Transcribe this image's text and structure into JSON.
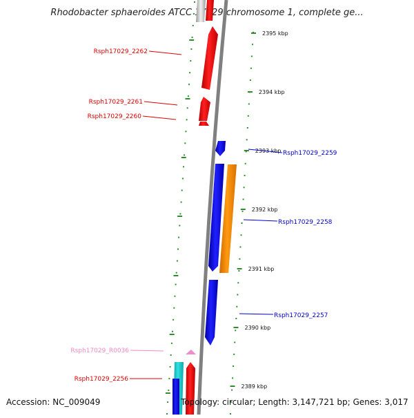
{
  "title": "Rhodobacter sphaeroides ATCC 17029 chromosome 1, complete ge...",
  "accession": "Accession: NC_009049",
  "summary": "Topology: circular; Length: 3,147,721 bp; Genes: 3,017",
  "scale_labels": [
    "2395 kbp",
    "2394 kbp",
    "2393 kbp",
    "2392 kbp",
    "2391 kbp",
    "2390 kbp",
    "2389 kbp"
  ],
  "genes": [
    {
      "name": "Rsph17029_2262",
      "strand": "reverse",
      "color": "#ff0000"
    },
    {
      "name": "Rsph17029_2261",
      "strand": "reverse",
      "color": "#ff0000"
    },
    {
      "name": "Rsph17029_2260",
      "strand": "reverse",
      "color": "#ff0000"
    },
    {
      "name": "Rsph17029_2259",
      "strand": "forward",
      "color": "#0000ee"
    },
    {
      "name": "Rsph17029_2258",
      "strand": "forward",
      "color": "#0000ee"
    },
    {
      "name": "Rsph17029_2257",
      "strand": "forward",
      "color": "#0000ee"
    },
    {
      "name": "Rsph17029_R0036",
      "strand": "reverse",
      "color": "#f08ac8"
    },
    {
      "name": "Rsph17029_2256",
      "strand": "reverse",
      "color": "#ff0000"
    }
  ],
  "colors": {
    "backbone": "#808080",
    "scale_ticks": "#2e8b2e",
    "orange_feature": "#ff8c00",
    "cyan_feature": "#1fc8c8",
    "forward_label": "#0000cc",
    "reverse_label": "#dd0000",
    "rna_label": "#f08ac8"
  }
}
